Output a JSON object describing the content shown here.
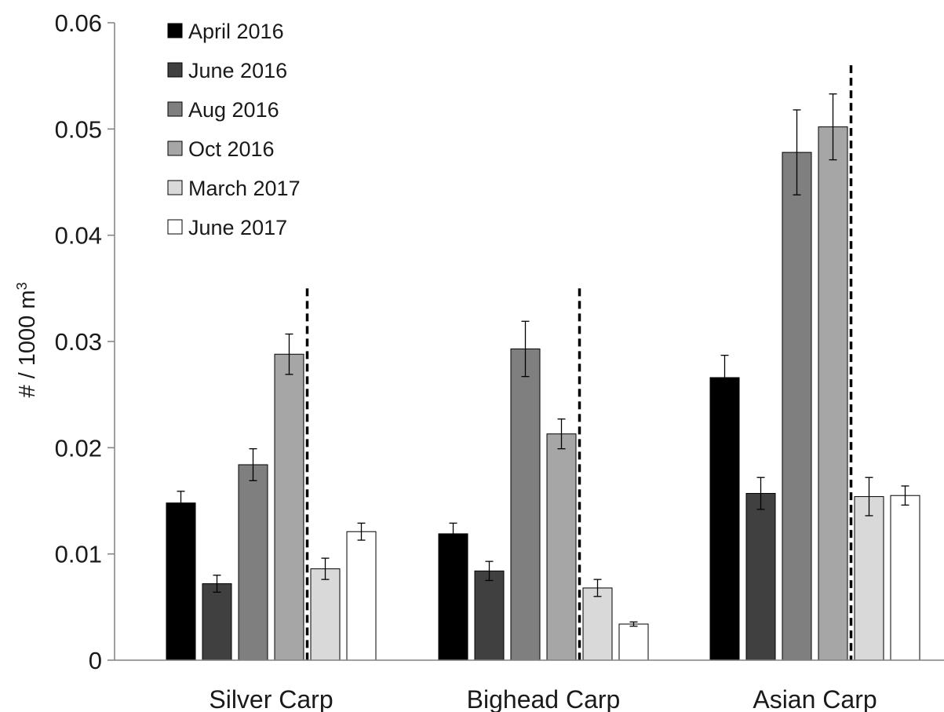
{
  "chart_data": {
    "type": "bar",
    "categories": [
      "Silver Carp",
      "Bighead Carp",
      "Asian Carp"
    ],
    "ylabel": "# / 1000 m",
    "ylabel_superscript": "3",
    "ylim": [
      0,
      0.06
    ],
    "yticks": [
      0,
      0.01,
      0.02,
      0.03,
      0.04,
      0.05,
      0.06
    ],
    "ytick_labels": [
      "0",
      "0.01",
      "0.02",
      "0.03",
      "0.04",
      "0.05",
      "0.06"
    ],
    "grid": false,
    "legend_position": "top-left",
    "series": [
      {
        "name": "April 2016",
        "color": "#000000",
        "values": [
          0.0148,
          0.0119,
          0.0266
        ],
        "errors": [
          0.0011,
          0.001,
          0.0021
        ]
      },
      {
        "name": "June 2016",
        "color": "#404040",
        "values": [
          0.0072,
          0.0084,
          0.0157
        ],
        "errors": [
          0.0008,
          0.0009,
          0.0015
        ]
      },
      {
        "name": "Aug 2016",
        "color": "#7f7f7f",
        "values": [
          0.0184,
          0.0293,
          0.0478
        ],
        "errors": [
          0.0015,
          0.0026,
          0.004
        ]
      },
      {
        "name": "Oct 2016",
        "color": "#a6a6a6",
        "values": [
          0.0288,
          0.0213,
          0.0502
        ],
        "errors": [
          0.0019,
          0.0014,
          0.0031
        ]
      },
      {
        "name": "March 2017",
        "color": "#d9d9d9",
        "values": [
          0.0086,
          0.0068,
          0.0154
        ],
        "errors": [
          0.001,
          0.0008,
          0.0018
        ]
      },
      {
        "name": "June 2017",
        "color": "#ffffff",
        "values": [
          0.0121,
          0.0034,
          0.0155
        ],
        "errors": [
          0.0008,
          0.0002,
          0.0009
        ]
      }
    ],
    "dashed_divider": {
      "between_series": [
        "Oct 2016",
        "March 2017"
      ],
      "top_values": [
        0.035,
        0.035,
        0.056
      ]
    }
  }
}
